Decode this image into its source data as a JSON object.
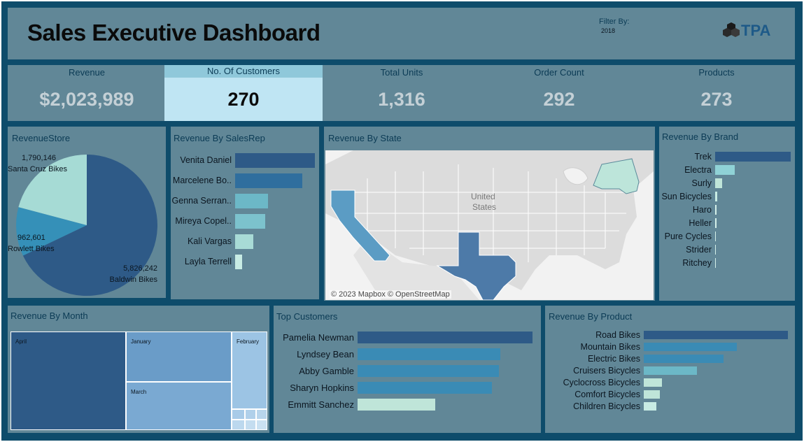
{
  "header": {
    "title": "Sales Executive Dashboard",
    "filter_label": "Filter By:",
    "filter_value": "2018",
    "logo_text": "TPA"
  },
  "kpis": [
    {
      "label": "Revenue",
      "value": "$2,023,989"
    },
    {
      "label": "No. Of Customers",
      "value": "270"
    },
    {
      "label": "Total Units",
      "value": "1,316"
    },
    {
      "label": "Order Count",
      "value": "292"
    },
    {
      "label": "Products",
      "value": "273"
    }
  ],
  "panels": {
    "revenue_store": "RevenueStore",
    "revenue_by_salesrep": "Revenue By SalesRep",
    "revenue_by_state": "Revenue By State",
    "revenue_by_brand": "Revenue By Brand",
    "revenue_by_month": "Revenue By Month",
    "top_customers": "Top Customers",
    "revenue_by_product": "Revenue By Product"
  },
  "map": {
    "country_label_1": "United",
    "country_label_2": "States",
    "attribution": "© 2023 Mapbox © OpenStreetMap",
    "highlighted_states": [
      "California",
      "Texas",
      "New York"
    ]
  },
  "colors": {
    "background": "#0e4c6b",
    "panel": "#618797",
    "dark_blue": "#2e5a87",
    "mid_blue": "#3a8bb5",
    "light_teal": "#7cc2cd",
    "pale_teal": "#bfe5d9"
  },
  "chart_data": [
    {
      "type": "pie",
      "title": "RevenueStore",
      "slices": [
        {
          "label": "Baldwin Bikes",
          "value": 5826242,
          "value_text": "5,826,242",
          "color": "#2e5a87"
        },
        {
          "label": "Santa Cruz Bikes",
          "value": 1790146,
          "value_text": "1,790,146",
          "color": "#a6dbd5"
        },
        {
          "label": "Rowlett Bikes",
          "value": 962601,
          "value_text": "962,601",
          "color": "#3590b8"
        }
      ]
    },
    {
      "type": "bar",
      "orientation": "horizontal",
      "title": "Revenue By SalesRep",
      "categories": [
        "Venita Daniel",
        "Marcelene Bo..",
        "Genna Serran..",
        "Mireya Copel..",
        "Kali Vargas",
        "Layla Terrell"
      ],
      "values": [
        2900000,
        2450000,
        1200000,
        1100000,
        650000,
        260000
      ],
      "colors": [
        "#2e5a87",
        "#2f6e9e",
        "#6cb8c7",
        "#7cc2cd",
        "#a8dbd6",
        "#c8ece4"
      ]
    },
    {
      "type": "bar",
      "orientation": "horizontal",
      "title": "Revenue By Brand",
      "categories": [
        "Trek",
        "Electra",
        "Surly",
        "Sun Bicycles",
        "Haro",
        "Heller",
        "Pure Cycles",
        "Strider",
        "Ritchey"
      ],
      "values": [
        5200000,
        1350000,
        480000,
        160000,
        90000,
        80000,
        70000,
        30000,
        20000
      ],
      "colors": [
        "#2e5a87",
        "#8fd2d6",
        "#bfe5d9",
        "#c8ece4",
        "#d4f0e9",
        "#d4f0e9",
        "#d4f0e9",
        "#d4f0e9",
        "#d4f0e9"
      ]
    },
    {
      "type": "heatmap",
      "subtype": "treemap",
      "title": "Revenue By Month",
      "cells": [
        {
          "label": "April",
          "value": 100,
          "color": "#2e5a87"
        },
        {
          "label": "January",
          "value": 45,
          "color": "#6a9cc8"
        },
        {
          "label": "March",
          "value": 42,
          "color": "#7aa9d2"
        },
        {
          "label": "February",
          "value": 36,
          "color": "#9cc4e4"
        }
      ]
    },
    {
      "type": "bar",
      "orientation": "horizontal",
      "title": "Top Customers",
      "categories": [
        "Pamelia Newman",
        "Lyndsey Bean",
        "Abby Gamble",
        "Sharyn Hopkins",
        "Emmitt Sanchez"
      ],
      "values": [
        37640,
        30650,
        30400,
        28980,
        16710
      ],
      "colors": [
        "#2e5a87",
        "#3a8bb5",
        "#3a8bb5",
        "#3a8bb5",
        "#bfe5d9"
      ]
    },
    {
      "type": "bar",
      "orientation": "horizontal",
      "title": "Revenue By Product",
      "categories": [
        "Road Bikes",
        "Mountain Bikes",
        "Electric Bikes",
        "Cruisers Bicycles",
        "Cyclocross Bicycles",
        "Comfort Bicycles",
        "Children Bicycles"
      ],
      "values": [
        3800000,
        2450000,
        2100000,
        1400000,
        480000,
        420000,
        340000
      ],
      "colors": [
        "#2e5a87",
        "#3a8bb5",
        "#3a8bb5",
        "#6cb8c7",
        "#bfe5d9",
        "#bfe5d9",
        "#c8ece4"
      ]
    }
  ]
}
